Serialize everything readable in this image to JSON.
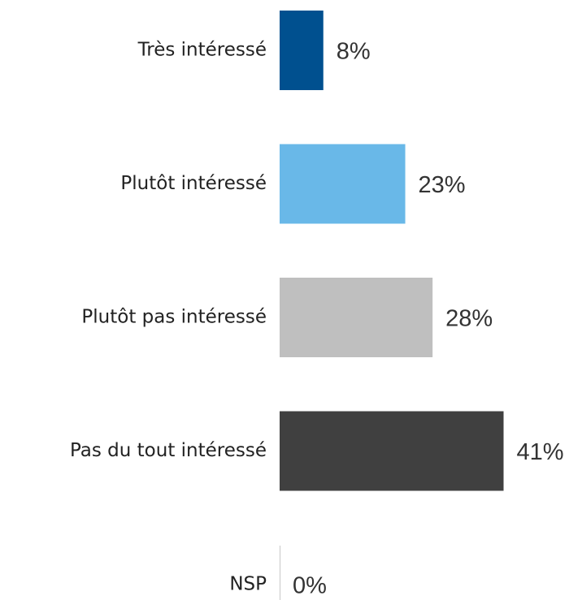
{
  "chart_data": {
    "type": "hbar",
    "categories": [
      "Très intéressé",
      "Plutôt intéressé",
      "Plutôt pas intéressé",
      "Pas du tout intéressé",
      "NSP"
    ],
    "values": [
      8,
      23,
      28,
      41,
      0
    ],
    "value_labels": [
      "8%",
      "23%",
      "28%",
      "41%",
      "0%"
    ],
    "colors": [
      "#00508f",
      "#69b8e8",
      "#bfbfbf",
      "#404040",
      "#bfbfbf"
    ]
  }
}
